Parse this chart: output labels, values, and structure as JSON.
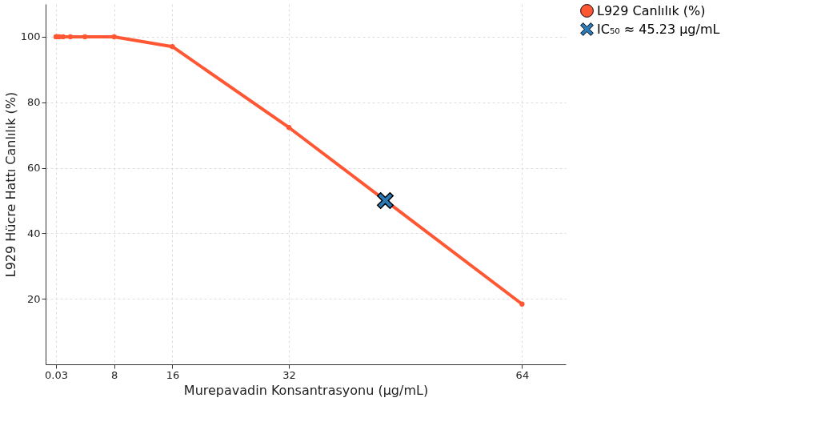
{
  "chart_data": {
    "type": "line",
    "xlabel": "Murepavadin Konsantrasyonu (µg/mL)",
    "ylabel": "L929 Hücre Hattı Canlılık (%)",
    "xlim": [
      -1.4,
      70
    ],
    "xticks": [
      0.03,
      8,
      16,
      32,
      64
    ],
    "ylim": [
      0,
      110
    ],
    "yticks": [
      20,
      40,
      60,
      80,
      100
    ],
    "grid": true,
    "legend": "right",
    "marker": "circle",
    "line_style": "solid",
    "series": [
      {
        "name": "L929 Canlılık (%)",
        "color": "#ff5733",
        "x": [
          0.03,
          0.06,
          0.125,
          0.25,
          0.5,
          1,
          2,
          4,
          8,
          16,
          32,
          64
        ],
        "values": [
          100,
          100,
          100,
          100,
          100,
          100,
          100,
          100,
          100,
          97,
          72.3,
          18.4
        ]
      },
      {
        "name": "IC₅₀ ≈ 45.23 µg/mL",
        "type": "scatter",
        "marker": "cross",
        "color": "#2a7ab8",
        "x": [
          45.23
        ],
        "values": [
          50
        ]
      }
    ]
  }
}
